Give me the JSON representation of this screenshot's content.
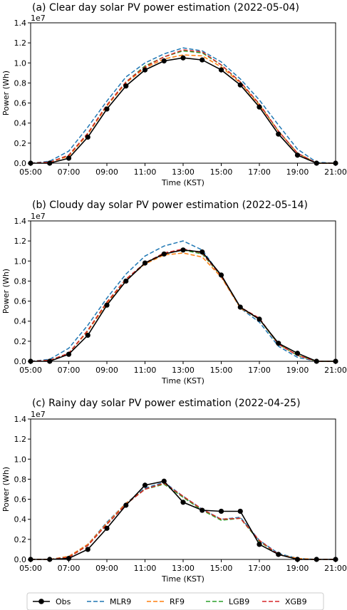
{
  "colors": {
    "Obs": "#000000",
    "MLR9": "#1f77b4",
    "RF9": "#ff7f0e",
    "LGB9": "#2ca02c",
    "XGB9": "#d62728"
  },
  "legend": {
    "items": [
      {
        "name": "Obs",
        "style": "solid-marker"
      },
      {
        "name": "MLR9",
        "style": "dashed"
      },
      {
        "name": "RF9",
        "style": "dashed"
      },
      {
        "name": "LGB9",
        "style": "dashed"
      },
      {
        "name": "XGB9",
        "style": "dashed"
      }
    ],
    "placement": "bottom-center"
  },
  "chart_data": [
    {
      "type": "line",
      "title": "(a) Clear day solar PV power estimation (2022-05-04)",
      "xlabel": "Time (KST)",
      "ylabel": "Power (Wh)",
      "y_exponent_label": "1e7",
      "xlim": [
        5,
        21
      ],
      "ylim": [
        0,
        1.4
      ],
      "xticks": [
        "05:00",
        "07:00",
        "09:00",
        "11:00",
        "13:00",
        "15:00",
        "17:00",
        "19:00",
        "21:00"
      ],
      "yticks": [
        "0.0",
        "0.2",
        "0.4",
        "0.6",
        "0.8",
        "1.0",
        "1.2",
        "1.4"
      ],
      "grid": false,
      "x": [
        5,
        6,
        7,
        8,
        9,
        10,
        11,
        12,
        13,
        14,
        15,
        16,
        17,
        18,
        19,
        20,
        21
      ],
      "series": [
        {
          "name": "Obs",
          "values": [
            0.0,
            0.0,
            0.05,
            0.26,
            0.54,
            0.77,
            0.93,
            1.02,
            1.05,
            1.03,
            0.93,
            0.78,
            0.56,
            0.29,
            0.08,
            0.0,
            0.0
          ]
        },
        {
          "name": "MLR9",
          "values": [
            0.0,
            0.02,
            0.12,
            0.36,
            0.62,
            0.86,
            1.0,
            1.09,
            1.15,
            1.12,
            1.01,
            0.84,
            0.63,
            0.38,
            0.14,
            0.01,
            0.0
          ]
        },
        {
          "name": "RF9",
          "values": [
            0.0,
            0.01,
            0.07,
            0.29,
            0.57,
            0.8,
            0.95,
            1.04,
            1.08,
            1.07,
            0.96,
            0.8,
            0.58,
            0.32,
            0.1,
            0.0,
            0.0
          ]
        },
        {
          "name": "LGB9",
          "values": [
            0.0,
            0.01,
            0.08,
            0.3,
            0.58,
            0.81,
            0.97,
            1.06,
            1.12,
            1.1,
            0.98,
            0.81,
            0.59,
            0.32,
            0.1,
            0.0,
            0.0
          ]
        },
        {
          "name": "XGB9",
          "values": [
            0.0,
            0.01,
            0.08,
            0.3,
            0.58,
            0.81,
            0.96,
            1.06,
            1.13,
            1.11,
            0.98,
            0.81,
            0.59,
            0.32,
            0.1,
            0.0,
            0.0
          ]
        }
      ]
    },
    {
      "type": "line",
      "title": "(b) Cloudy day solar PV power estimation (2022-05-14)",
      "xlabel": "Time (KST)",
      "ylabel": "Power (Wh)",
      "y_exponent_label": "1e7",
      "xlim": [
        5,
        21
      ],
      "ylim": [
        0,
        1.4
      ],
      "xticks": [
        "05:00",
        "07:00",
        "09:00",
        "11:00",
        "13:00",
        "15:00",
        "17:00",
        "19:00",
        "21:00"
      ],
      "yticks": [
        "0.0",
        "0.2",
        "0.4",
        "0.6",
        "0.8",
        "1.0",
        "1.2",
        "1.4"
      ],
      "grid": false,
      "x": [
        5,
        6,
        7,
        8,
        9,
        10,
        11,
        12,
        13,
        14,
        15,
        16,
        17,
        18,
        19,
        20,
        21
      ],
      "series": [
        {
          "name": "Obs",
          "values": [
            0.0,
            0.0,
            0.07,
            0.26,
            0.56,
            0.8,
            0.98,
            1.07,
            1.11,
            1.09,
            0.86,
            0.54,
            0.42,
            0.18,
            0.08,
            0.0,
            0.0
          ]
        },
        {
          "name": "MLR9",
          "values": [
            0.0,
            0.02,
            0.13,
            0.36,
            0.63,
            0.87,
            1.05,
            1.15,
            1.2,
            1.11,
            0.85,
            0.53,
            0.39,
            0.15,
            0.04,
            0.0,
            0.0
          ]
        },
        {
          "name": "RF9",
          "values": [
            0.0,
            0.01,
            0.08,
            0.3,
            0.58,
            0.81,
            0.97,
            1.06,
            1.08,
            1.04,
            0.84,
            0.53,
            0.42,
            0.17,
            0.06,
            0.0,
            0.0
          ]
        },
        {
          "name": "LGB9",
          "values": [
            0.0,
            0.01,
            0.08,
            0.31,
            0.59,
            0.82,
            0.98,
            1.08,
            1.11,
            1.07,
            0.85,
            0.54,
            0.42,
            0.17,
            0.06,
            0.0,
            0.0
          ]
        },
        {
          "name": "XGB9",
          "values": [
            0.0,
            0.01,
            0.08,
            0.31,
            0.59,
            0.82,
            0.98,
            1.08,
            1.12,
            1.08,
            0.85,
            0.54,
            0.43,
            0.17,
            0.06,
            0.0,
            0.0
          ]
        }
      ]
    },
    {
      "type": "line",
      "title": "(c) Rainy day solar PV power estimation (2022-04-25)",
      "xlabel": "Time (KST)",
      "ylabel": "Power (Wh)",
      "y_exponent_label": "1e7",
      "xlim": [
        5,
        21
      ],
      "ylim": [
        0,
        1.4
      ],
      "xticks": [
        "05:00",
        "07:00",
        "09:00",
        "11:00",
        "13:00",
        "15:00",
        "17:00",
        "19:00",
        "21:00"
      ],
      "yticks": [
        "0.0",
        "0.2",
        "0.4",
        "0.6",
        "0.8",
        "1.0",
        "1.2",
        "1.4"
      ],
      "grid": false,
      "x": [
        5,
        6,
        7,
        8,
        9,
        10,
        11,
        12,
        13,
        14,
        15,
        16,
        17,
        18,
        19,
        20,
        21
      ],
      "series": [
        {
          "name": "Obs",
          "values": [
            0.0,
            0.0,
            0.01,
            0.1,
            0.31,
            0.54,
            0.74,
            0.78,
            0.57,
            0.49,
            0.48,
            0.48,
            0.15,
            0.05,
            0.0,
            0.0,
            0.0
          ]
        },
        {
          "name": "MLR9",
          "values": [
            0.0,
            0.0,
            0.03,
            0.15,
            0.37,
            0.56,
            0.71,
            0.77,
            0.63,
            0.5,
            0.4,
            0.42,
            0.19,
            0.06,
            0.01,
            0.0,
            0.0
          ]
        },
        {
          "name": "RF9",
          "values": [
            0.0,
            0.0,
            0.03,
            0.15,
            0.36,
            0.56,
            0.7,
            0.76,
            0.62,
            0.49,
            0.4,
            0.41,
            0.18,
            0.05,
            0.01,
            0.0,
            0.0
          ]
        },
        {
          "name": "LGB9",
          "values": [
            0.0,
            0.0,
            0.02,
            0.14,
            0.35,
            0.55,
            0.7,
            0.75,
            0.62,
            0.49,
            0.39,
            0.41,
            0.18,
            0.05,
            0.0,
            0.0,
            0.0
          ]
        },
        {
          "name": "XGB9",
          "values": [
            0.0,
            0.0,
            0.02,
            0.14,
            0.35,
            0.55,
            0.7,
            0.76,
            0.63,
            0.5,
            0.4,
            0.41,
            0.19,
            0.05,
            0.0,
            0.0,
            0.0
          ]
        }
      ]
    }
  ]
}
